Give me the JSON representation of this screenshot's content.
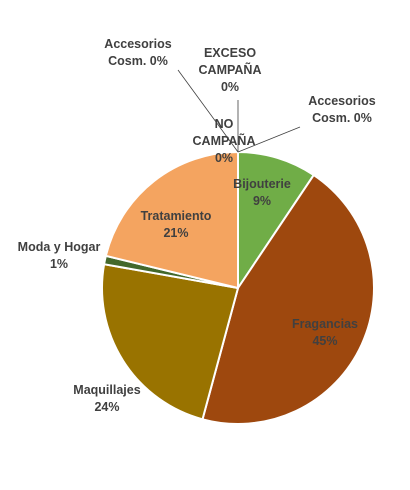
{
  "chart_data": {
    "type": "pie",
    "categories": [
      "Bijouterie",
      "Fragancias",
      "Maquillajes",
      "Moda y Hogar",
      "Tratamiento",
      "NO CAMPAÑA",
      "Accesorios Cosm.",
      "EXCESO CAMPAÑA",
      "Accesorios Cosm."
    ],
    "values": [
      9.4,
      44.8,
      23.6,
      1.0,
      21.2,
      0.0,
      0.0,
      0.0,
      0.0
    ],
    "colors": [
      "#70ad47",
      "#9e480e",
      "#997300",
      "#43682b",
      "#f4a460",
      "#4472c4",
      "#ffc000",
      "#5b9bd5",
      "#a5a5a5"
    ],
    "labels": [
      {
        "name": [
          "Bijouterie"
        ],
        "pct": "9%",
        "color": "#404040"
      },
      {
        "name": [
          "Fragancias"
        ],
        "pct": "45%",
        "color": "#f4b183"
      },
      {
        "name": [
          "Maquillajes"
        ],
        "pct": "24%",
        "color": "#404040"
      },
      {
        "name": [
          "Moda y Hogar"
        ],
        "pct": "1%",
        "color": "#404040"
      },
      {
        "name": [
          "Tratamiento"
        ],
        "pct": "21%",
        "color": "#404040"
      },
      {
        "name": [
          "NO",
          "CAMPAÑA"
        ],
        "pct": "0%",
        "color": "#404040"
      },
      {
        "name": [
          "Accesorios",
          "Cosm. 0%"
        ],
        "pct": "",
        "color": "#404040"
      },
      {
        "name": [
          "EXCESO",
          "CAMPAÑA"
        ],
        "pct": "0%",
        "color": "#404040"
      },
      {
        "name": [
          "Accesorios",
          "Cosm. 0%"
        ],
        "pct": "",
        "color": "#404040"
      }
    ],
    "legend": "none"
  }
}
